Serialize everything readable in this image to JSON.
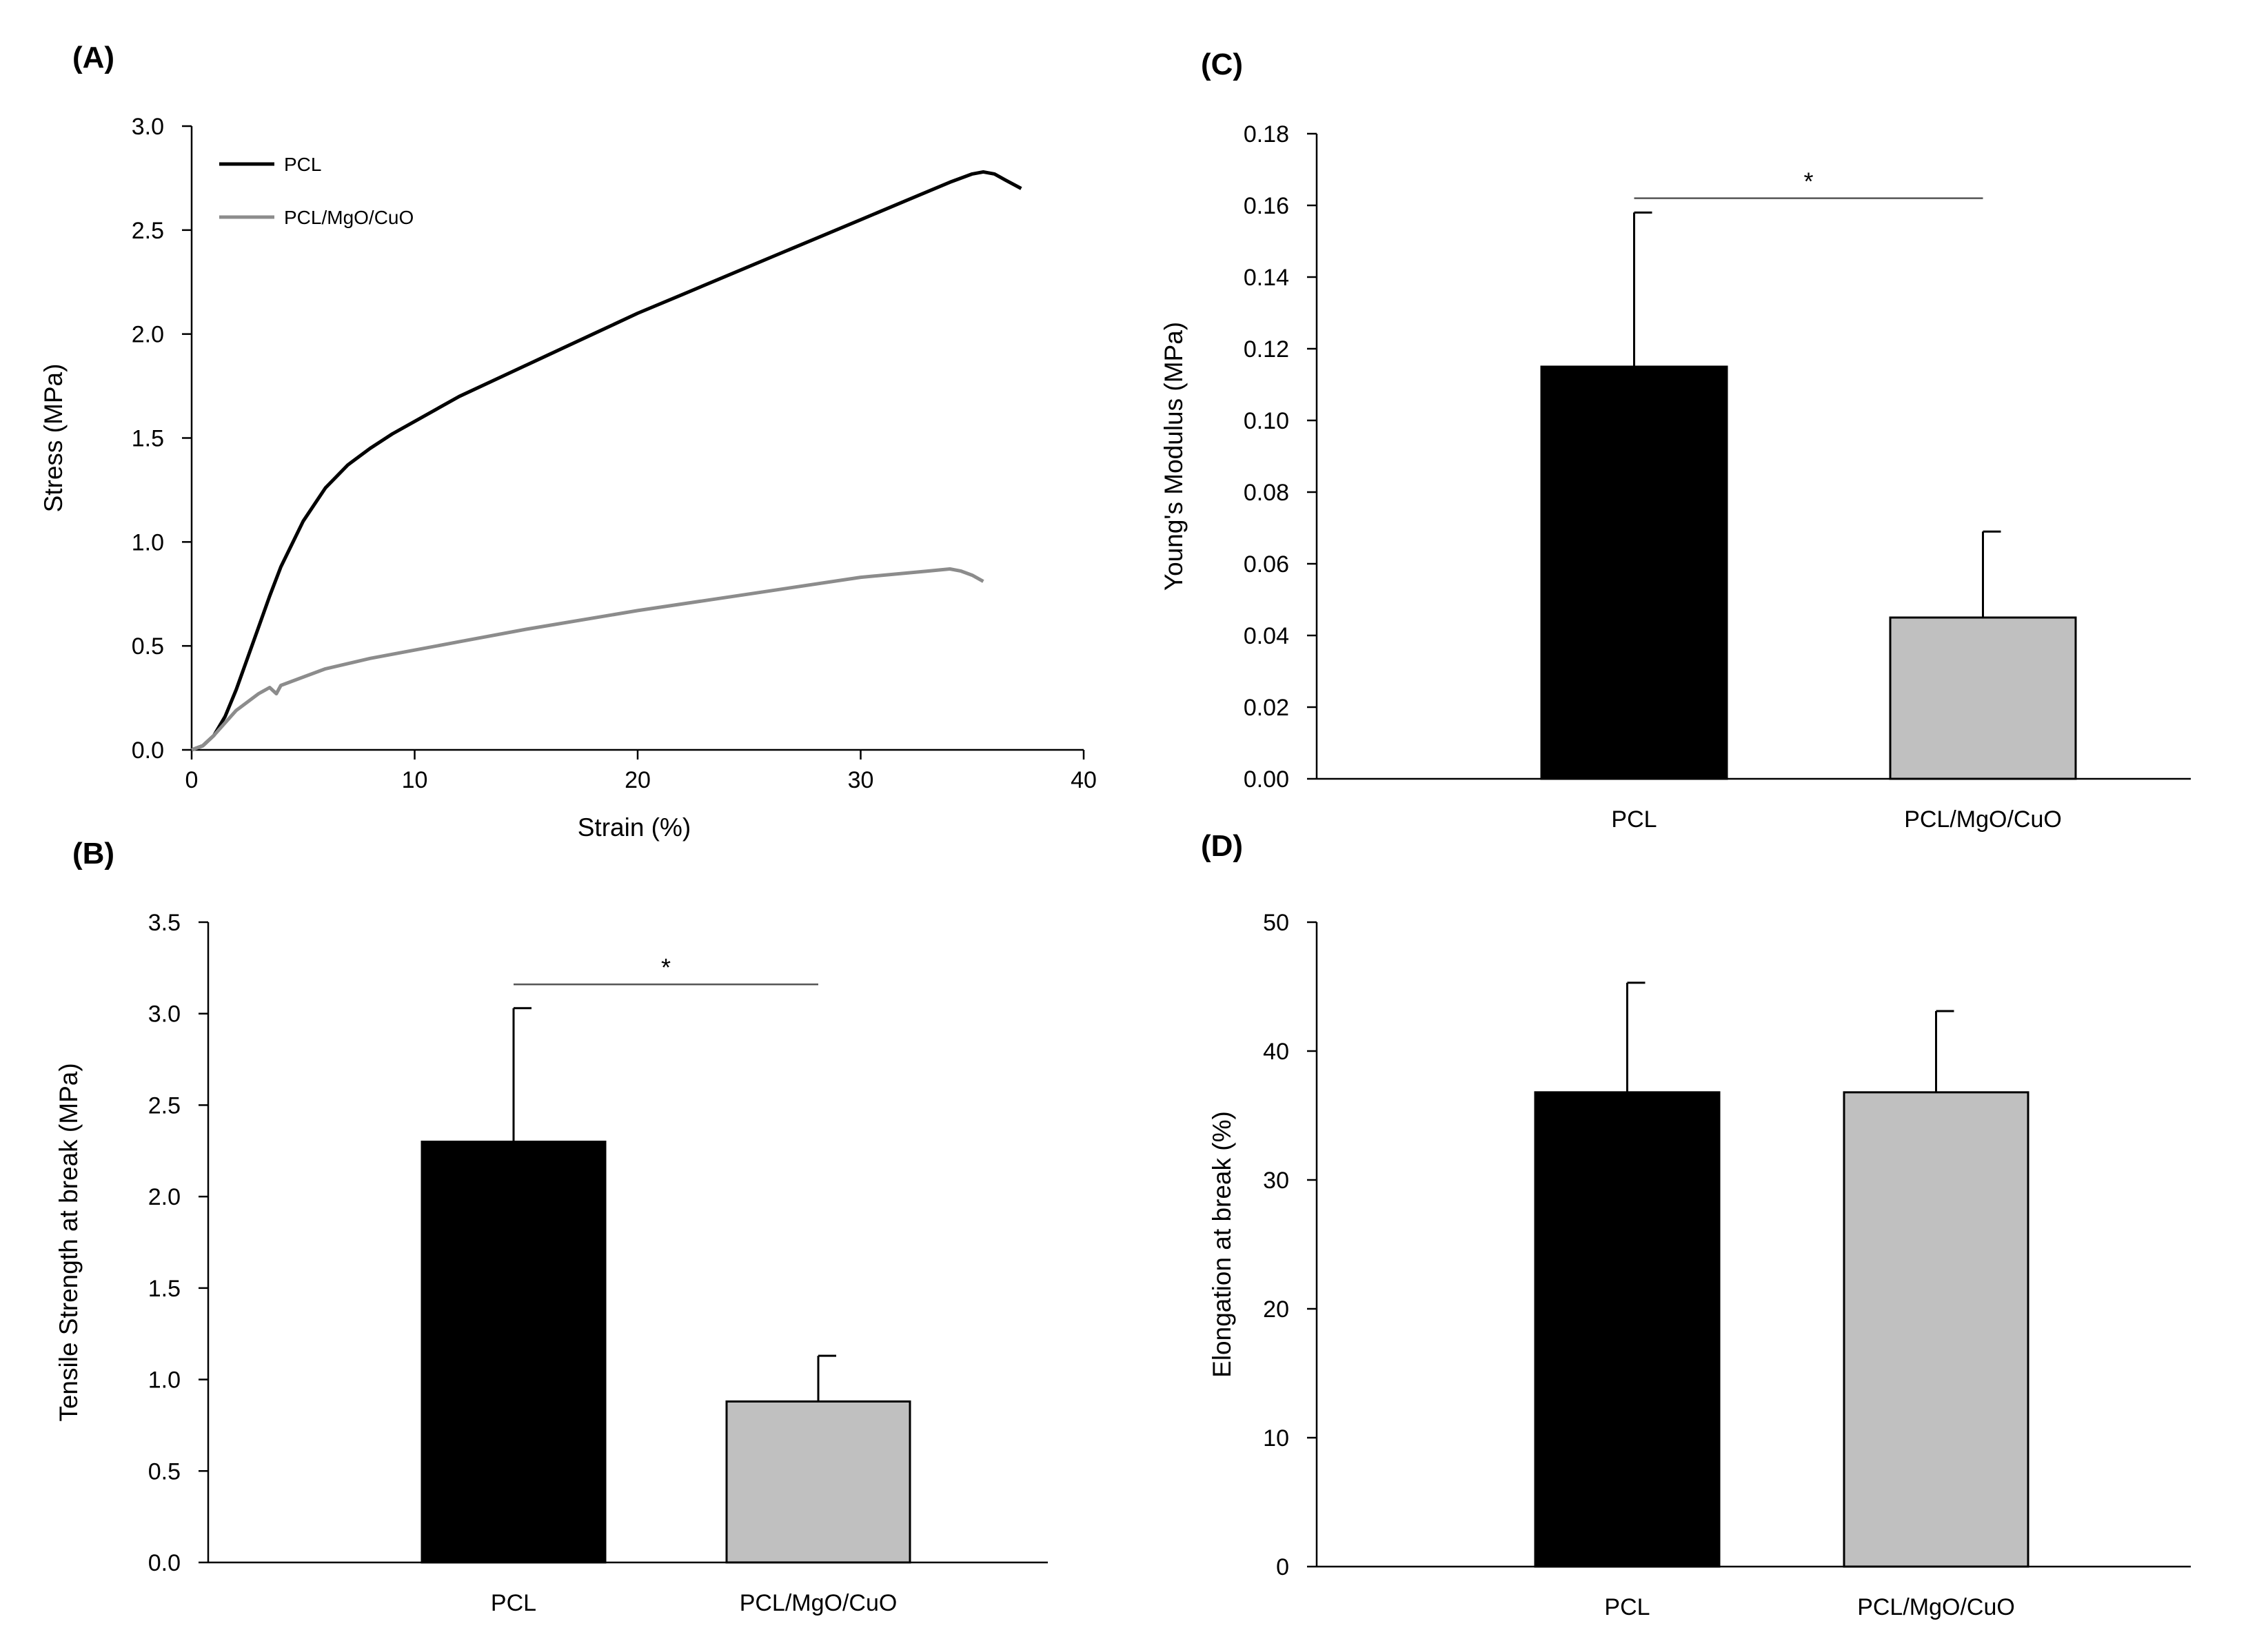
{
  "chart_data": [
    {
      "id": "A",
      "panel_label": "(A)",
      "type": "line",
      "xlabel": "Strain (%)",
      "ylabel": "Stress (MPa)",
      "xlim": [
        0,
        40
      ],
      "ylim": [
        0,
        3.0
      ],
      "xticks": [
        "0",
        "10",
        "20",
        "30",
        "40"
      ],
      "yticks": [
        "0.0",
        "0.5",
        "1.0",
        "1.5",
        "2.0",
        "2.5",
        "3.0"
      ],
      "legend_position": "top-left",
      "series": [
        {
          "name": "PCL",
          "color": "#000000",
          "x": [
            0,
            0.5,
            1,
            1.5,
            2,
            2.5,
            3,
            3.5,
            4,
            5,
            6,
            7,
            8,
            9,
            10,
            12,
            14,
            16,
            18,
            20,
            22,
            24,
            26,
            28,
            30,
            32,
            34,
            35,
            35.5,
            36,
            36.5,
            37.2
          ],
          "y": [
            0,
            0.02,
            0.07,
            0.16,
            0.29,
            0.44,
            0.59,
            0.74,
            0.88,
            1.1,
            1.26,
            1.37,
            1.45,
            1.52,
            1.58,
            1.7,
            1.8,
            1.9,
            2.0,
            2.1,
            2.19,
            2.28,
            2.37,
            2.46,
            2.55,
            2.64,
            2.73,
            2.77,
            2.78,
            2.77,
            2.74,
            2.7
          ]
        },
        {
          "name": "PCL/MgO/CuO",
          "color": "#8c8c8c",
          "x": [
            0,
            0.5,
            1,
            1.5,
            2,
            2.5,
            3,
            3.5,
            3.8,
            4,
            5,
            6,
            8,
            10,
            12,
            15,
            20,
            25,
            30,
            33,
            34,
            34.5,
            35,
            35.5
          ],
          "y": [
            0,
            0.02,
            0.07,
            0.13,
            0.19,
            0.23,
            0.27,
            0.3,
            0.27,
            0.31,
            0.35,
            0.39,
            0.44,
            0.48,
            0.52,
            0.58,
            0.67,
            0.75,
            0.83,
            0.86,
            0.87,
            0.86,
            0.84,
            0.81
          ]
        }
      ]
    },
    {
      "id": "B",
      "panel_label": "(B)",
      "type": "bar",
      "xlabel": "",
      "ylabel": "Tensile Strength at break (MPa)",
      "ylim": [
        0,
        3.5
      ],
      "yticks": [
        "0.0",
        "0.5",
        "1.0",
        "1.5",
        "2.0",
        "2.5",
        "3.0",
        "3.5"
      ],
      "categories": [
        "PCL",
        "PCL/MgO/CuO"
      ],
      "values": [
        2.3,
        0.88
      ],
      "errors": [
        0.73,
        0.25
      ],
      "bar_colors": [
        "#000000",
        "#c0c0c0"
      ],
      "significance": {
        "label": "*",
        "y": 3.16
      }
    },
    {
      "id": "C",
      "panel_label": "(C)",
      "type": "bar",
      "xlabel": "",
      "ylabel": "Young's Modulus (MPa)",
      "ylim": [
        0,
        0.18
      ],
      "yticks": [
        "0.00",
        "0.02",
        "0.04",
        "0.06",
        "0.08",
        "0.10",
        "0.12",
        "0.14",
        "0.16",
        "0.18"
      ],
      "categories": [
        "PCL",
        "PCL/MgO/CuO"
      ],
      "values": [
        0.115,
        0.045
      ],
      "errors": [
        0.043,
        0.024
      ],
      "bar_colors": [
        "#000000",
        "#c0c0c0"
      ],
      "significance": {
        "label": "*",
        "y": 0.162
      }
    },
    {
      "id": "D",
      "panel_label": "(D)",
      "type": "bar",
      "xlabel": "",
      "ylabel": "Elongation at break (%)",
      "ylim": [
        0,
        50
      ],
      "yticks": [
        "0",
        "10",
        "20",
        "30",
        "40",
        "50"
      ],
      "categories": [
        "PCL",
        "PCL/MgO/CuO"
      ],
      "values": [
        36.8,
        36.8
      ],
      "errors": [
        8.5,
        6.3
      ],
      "bar_colors": [
        "#000000",
        "#c0c0c0"
      ]
    }
  ]
}
